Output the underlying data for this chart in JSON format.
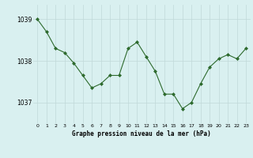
{
  "x": [
    0,
    1,
    2,
    3,
    4,
    5,
    6,
    7,
    8,
    9,
    10,
    11,
    12,
    13,
    14,
    15,
    16,
    17,
    18,
    19,
    20,
    21,
    22,
    23
  ],
  "y": [
    1039.0,
    1038.7,
    1038.3,
    1038.2,
    1037.95,
    1037.65,
    1037.35,
    1037.45,
    1037.65,
    1037.65,
    1038.3,
    1038.45,
    1038.1,
    1037.75,
    1037.2,
    1037.2,
    1036.85,
    1037.0,
    1037.45,
    1037.85,
    1038.05,
    1038.15,
    1038.05,
    1038.3
  ],
  "line_color": "#2d6a2d",
  "marker_color": "#2d6a2d",
  "bg_color": "#d9f0f0",
  "grid_color": "#c0d8d8",
  "xlabel": "Graphe pression niveau de la mer (hPa)",
  "yticks": [
    1037,
    1038,
    1039
  ],
  "ylim": [
    1036.5,
    1039.35
  ],
  "xlim": [
    -0.5,
    23.5
  ]
}
